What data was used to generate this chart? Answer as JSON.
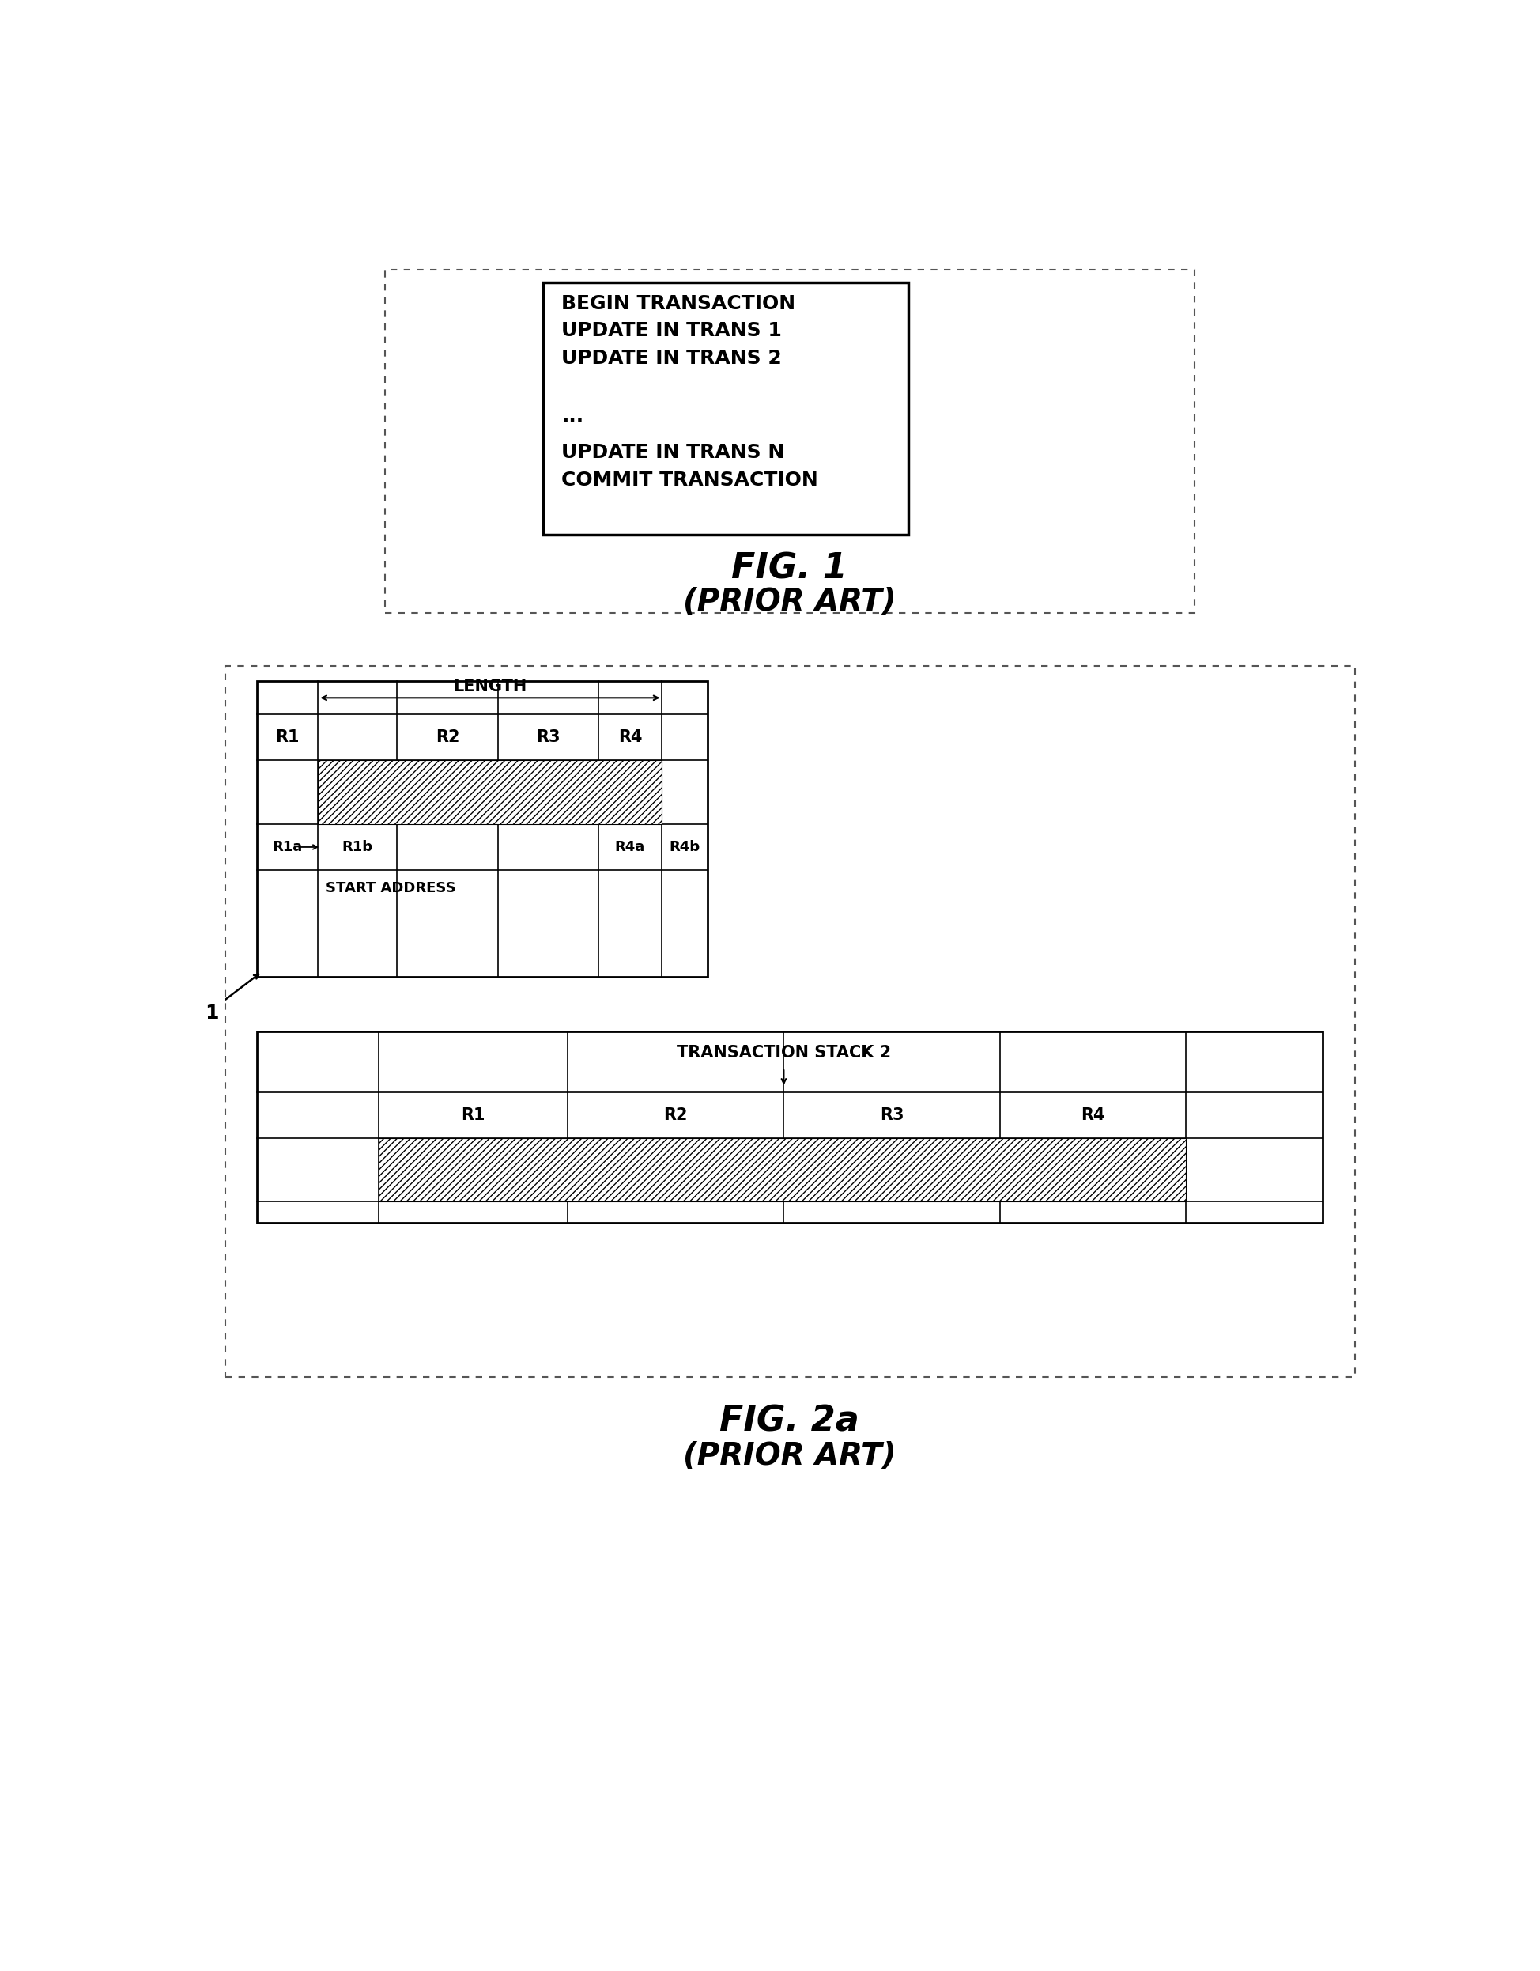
{
  "bg_color": "#ffffff",
  "fig1_caption": "FIG. 1",
  "fig1_subcaption": "(PRIOR ART)",
  "fig2a_caption": "FIG. 2a",
  "fig2a_subcaption": "(PRIOR ART)",
  "fig1_box_lines": [
    "BEGIN TRANSACTION",
    "UPDATE IN TRANS 1",
    "UPDATE IN TRANS 2",
    "",
    "...",
    "UPDATE IN TRANS N",
    "COMMIT TRANSACTION"
  ],
  "label_1": "1",
  "label_transaction_stack2": "TRANSACTION STACK 2"
}
